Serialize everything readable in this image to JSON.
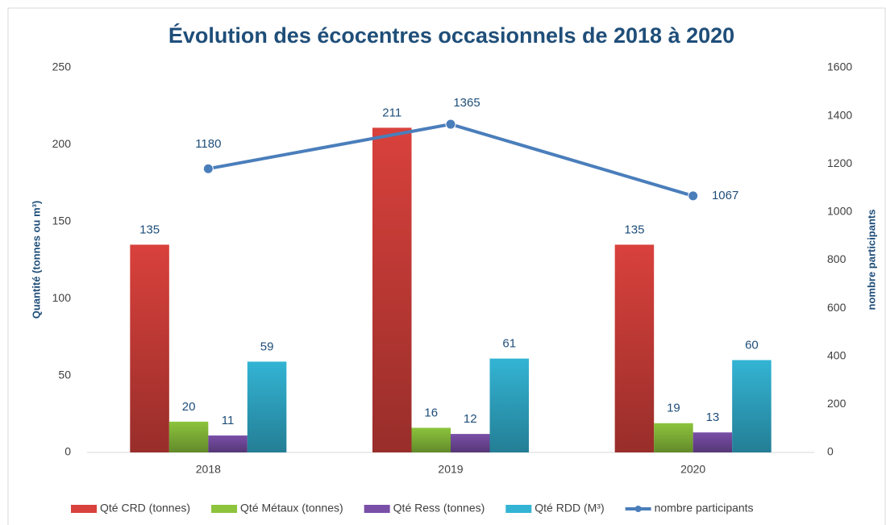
{
  "chart_data": {
    "type": "bar",
    "title": "Évolution des écocentres occasionnels de 2018 à 2020",
    "y_label": "Quantité (tonnes ou m³)",
    "y2_label": "nombre participants",
    "categories": [
      "2018",
      "2019",
      "2020"
    ],
    "series": [
      {
        "name": "Qté CRD (tonnes)",
        "color": "#d9413c",
        "values": [
          135,
          211,
          135
        ]
      },
      {
        "name": "Qté Métaux (tonnes)",
        "color": "#8cc43c",
        "values": [
          20,
          16,
          19
        ]
      },
      {
        "name": "Qté Ress (tonnes)",
        "color": "#7a4fa8",
        "values": [
          11,
          12,
          13
        ]
      },
      {
        "name": "Qté RDD (M³)",
        "color": "#33b4d4",
        "values": [
          59,
          61,
          60
        ]
      },
      {
        "name": "nombre participants",
        "color": "#4a7ebb",
        "type": "line",
        "axis": "y2",
        "values": [
          1180,
          1365,
          1067
        ]
      }
    ],
    "ylim": [
      0,
      250
    ],
    "yticks": [
      0,
      50,
      100,
      150,
      200,
      250
    ],
    "y2lim": [
      0,
      1600
    ],
    "y2ticks": [
      0,
      200,
      400,
      600,
      800,
      1000,
      1200,
      1400,
      1600
    ],
    "legend": "bottom"
  }
}
